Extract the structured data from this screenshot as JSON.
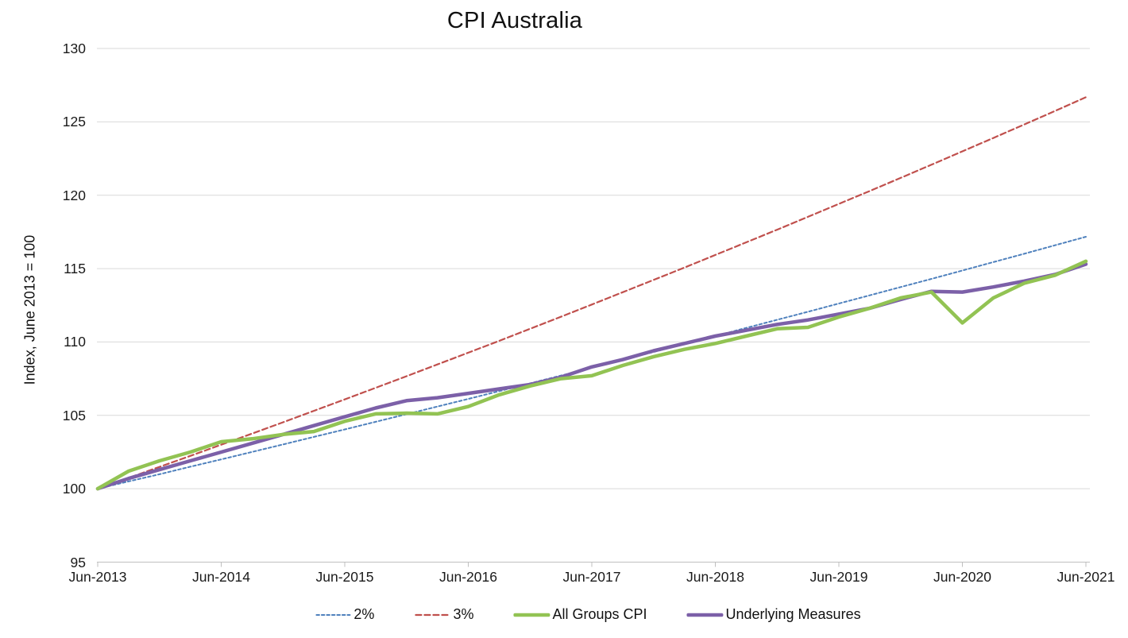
{
  "title": "CPI Australia",
  "y_axis_title": "Index, June 2013 = 100",
  "colors": {
    "guide_2pct": "#4F81BD",
    "guide_3pct": "#C0504D",
    "all_groups_cpi": "#92C353",
    "underlying_measures": "#7C60A8",
    "gridline": "#D9D9D9",
    "axis_line": "#BFBFBF",
    "text": "#1a1a1a"
  },
  "legend": {
    "items": [
      "2%",
      "3%",
      "All Groups CPI",
      "Underlying Measures"
    ]
  },
  "chart_data": {
    "type": "line",
    "title": "CPI Australia",
    "xlabel": "",
    "ylabel": "Index, June 2013 = 100",
    "ylim": [
      95,
      130
    ],
    "yticks": [
      95,
      100,
      105,
      110,
      115,
      120,
      125,
      130
    ],
    "grid": true,
    "legend_position": "bottom",
    "x_tick_labels": [
      "Jun-2013",
      "Jun-2014",
      "Jun-2015",
      "Jun-2016",
      "Jun-2017",
      "Jun-2018",
      "Jun-2019",
      "Jun-2020",
      "Jun-2021"
    ],
    "x_tick_every": 4,
    "categories": [
      "Jun-2013",
      "Sep-2013",
      "Dec-2013",
      "Mar-2014",
      "Jun-2014",
      "Sep-2014",
      "Dec-2014",
      "Mar-2015",
      "Jun-2015",
      "Sep-2015",
      "Dec-2015",
      "Mar-2016",
      "Jun-2016",
      "Sep-2016",
      "Dec-2016",
      "Mar-2017",
      "Jun-2017",
      "Sep-2017",
      "Dec-2017",
      "Mar-2018",
      "Jun-2018",
      "Sep-2018",
      "Dec-2018",
      "Mar-2019",
      "Jun-2019",
      "Sep-2019",
      "Dec-2019",
      "Mar-2020",
      "Jun-2020",
      "Sep-2020",
      "Dec-2020",
      "Mar-2021",
      "Jun-2021"
    ],
    "series": [
      {
        "name": "2%",
        "color": "#4F81BD",
        "style": "dashed",
        "dash": "3.5 3",
        "width": 2,
        "values": [
          100,
          100.5,
          100.99,
          101.5,
          102,
          102.51,
          103.02,
          103.53,
          104.04,
          104.56,
          105.08,
          105.6,
          106.12,
          106.65,
          107.18,
          107.71,
          108.24,
          108.78,
          109.32,
          109.86,
          110.41,
          110.96,
          111.51,
          112.06,
          112.62,
          113.18,
          113.74,
          114.3,
          114.87,
          115.44,
          116.01,
          116.59,
          117.17
        ]
      },
      {
        "name": "3%",
        "color": "#C0504D",
        "style": "dashed",
        "dash": "7 4",
        "width": 2.2,
        "values": [
          100,
          100.74,
          101.49,
          102.24,
          103,
          103.76,
          104.53,
          105.31,
          106.09,
          106.88,
          107.67,
          108.47,
          109.27,
          110.08,
          110.9,
          111.72,
          112.55,
          113.39,
          114.23,
          115.07,
          115.93,
          116.79,
          117.65,
          118.53,
          119.41,
          120.29,
          121.18,
          122.08,
          122.99,
          123.9,
          124.82,
          125.74,
          126.68
        ]
      },
      {
        "name": "Underlying Measures",
        "color": "#7C60A8",
        "style": "solid",
        "dash": null,
        "width": 4.5,
        "values": [
          100,
          100.7,
          101.3,
          101.9,
          102.5,
          103.1,
          103.7,
          104.3,
          104.9,
          105.5,
          106,
          106.2,
          106.5,
          106.8,
          107.1,
          107.6,
          108.3,
          108.8,
          109.4,
          109.9,
          110.4,
          110.8,
          111.2,
          111.5,
          111.9,
          112.3,
          112.9,
          113.45,
          113.4,
          113.75,
          114.15,
          114.6,
          115.3
        ]
      },
      {
        "name": "All Groups CPI",
        "color": "#92C353",
        "style": "solid",
        "dash": null,
        "width": 4.5,
        "values": [
          100,
          101.2,
          101.9,
          102.5,
          103.2,
          103.4,
          103.7,
          103.9,
          104.6,
          105.1,
          105.15,
          105.1,
          105.6,
          106.4,
          107,
          107.5,
          107.7,
          108.4,
          109,
          109.5,
          109.9,
          110.4,
          110.9,
          111,
          111.7,
          112.3,
          113,
          113.4,
          111.3,
          113,
          114,
          114.55,
          115.5
        ]
      }
    ],
    "legend_order": [
      "2%",
      "3%",
      "All Groups CPI",
      "Underlying Measures"
    ]
  }
}
